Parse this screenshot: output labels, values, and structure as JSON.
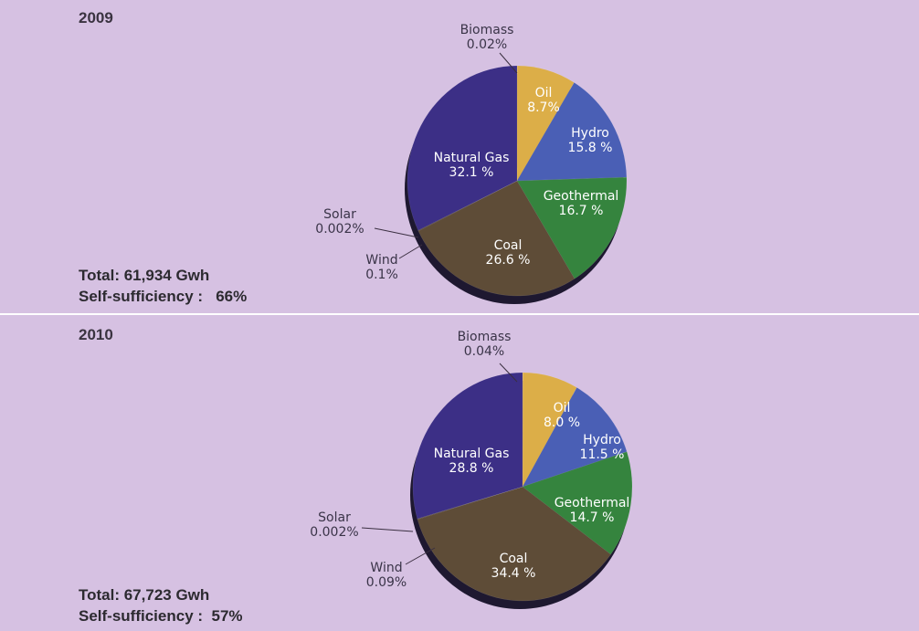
{
  "chart_data": [
    {
      "type": "pie",
      "title": "2009",
      "total": "Total: 61,934 Gwh",
      "self_sufficiency_label": "Self-sufficiency :",
      "self_sufficiency_value": "66%",
      "slices": [
        {
          "label": "Biomass",
          "pct": "0.02%",
          "value": 0.02,
          "color": "#c9a040"
        },
        {
          "label": "Oil",
          "pct": "8.7%",
          "value": 8.7,
          "color": "#dcae48"
        },
        {
          "label": "Hydro",
          "pct": "15.8 %",
          "value": 15.8,
          "color": "#4a5fb5"
        },
        {
          "label": "Geothermal",
          "pct": "16.7 %",
          "value": 16.7,
          "color": "#35843e"
        },
        {
          "label": "Coal",
          "pct": "26.6 %",
          "value": 26.6,
          "color": "#5e4c37"
        },
        {
          "label": "Wind",
          "pct": "0.1%",
          "value": 0.1,
          "color": "#4a3a2a"
        },
        {
          "label": "Solar",
          "pct": "0.002%",
          "value": 0.002,
          "color": "#3a2a20"
        },
        {
          "label": "Natural Gas",
          "pct": "32.1 %",
          "value": 32.1,
          "color": "#3c2f86"
        }
      ]
    },
    {
      "type": "pie",
      "title": "2010",
      "total": "Total: 67,723 Gwh",
      "self_sufficiency_label": "Self-sufficiency :",
      "self_sufficiency_value": "57%",
      "slices": [
        {
          "label": "Biomass",
          "pct": "0.04%",
          "value": 0.04,
          "color": "#c9a040"
        },
        {
          "label": "Oil",
          "pct": "8.0 %",
          "value": 8.0,
          "color": "#dcae48"
        },
        {
          "label": "Hydro",
          "pct": "11.5 %",
          "value": 11.5,
          "color": "#4a5fb5"
        },
        {
          "label": "Geothermal",
          "pct": "14.7 %",
          "value": 14.7,
          "color": "#35843e"
        },
        {
          "label": "Coal",
          "pct": "34.4 %",
          "value": 34.4,
          "color": "#5e4c37"
        },
        {
          "label": "Wind",
          "pct": "0.09%",
          "value": 0.09,
          "color": "#4a3a2a"
        },
        {
          "label": "Solar",
          "pct": "0.002%",
          "value": 0.002,
          "color": "#3a2a20"
        },
        {
          "label": "Natural Gas",
          "pct": "28.8 %",
          "value": 28.8,
          "color": "#3c2f86"
        }
      ]
    }
  ]
}
